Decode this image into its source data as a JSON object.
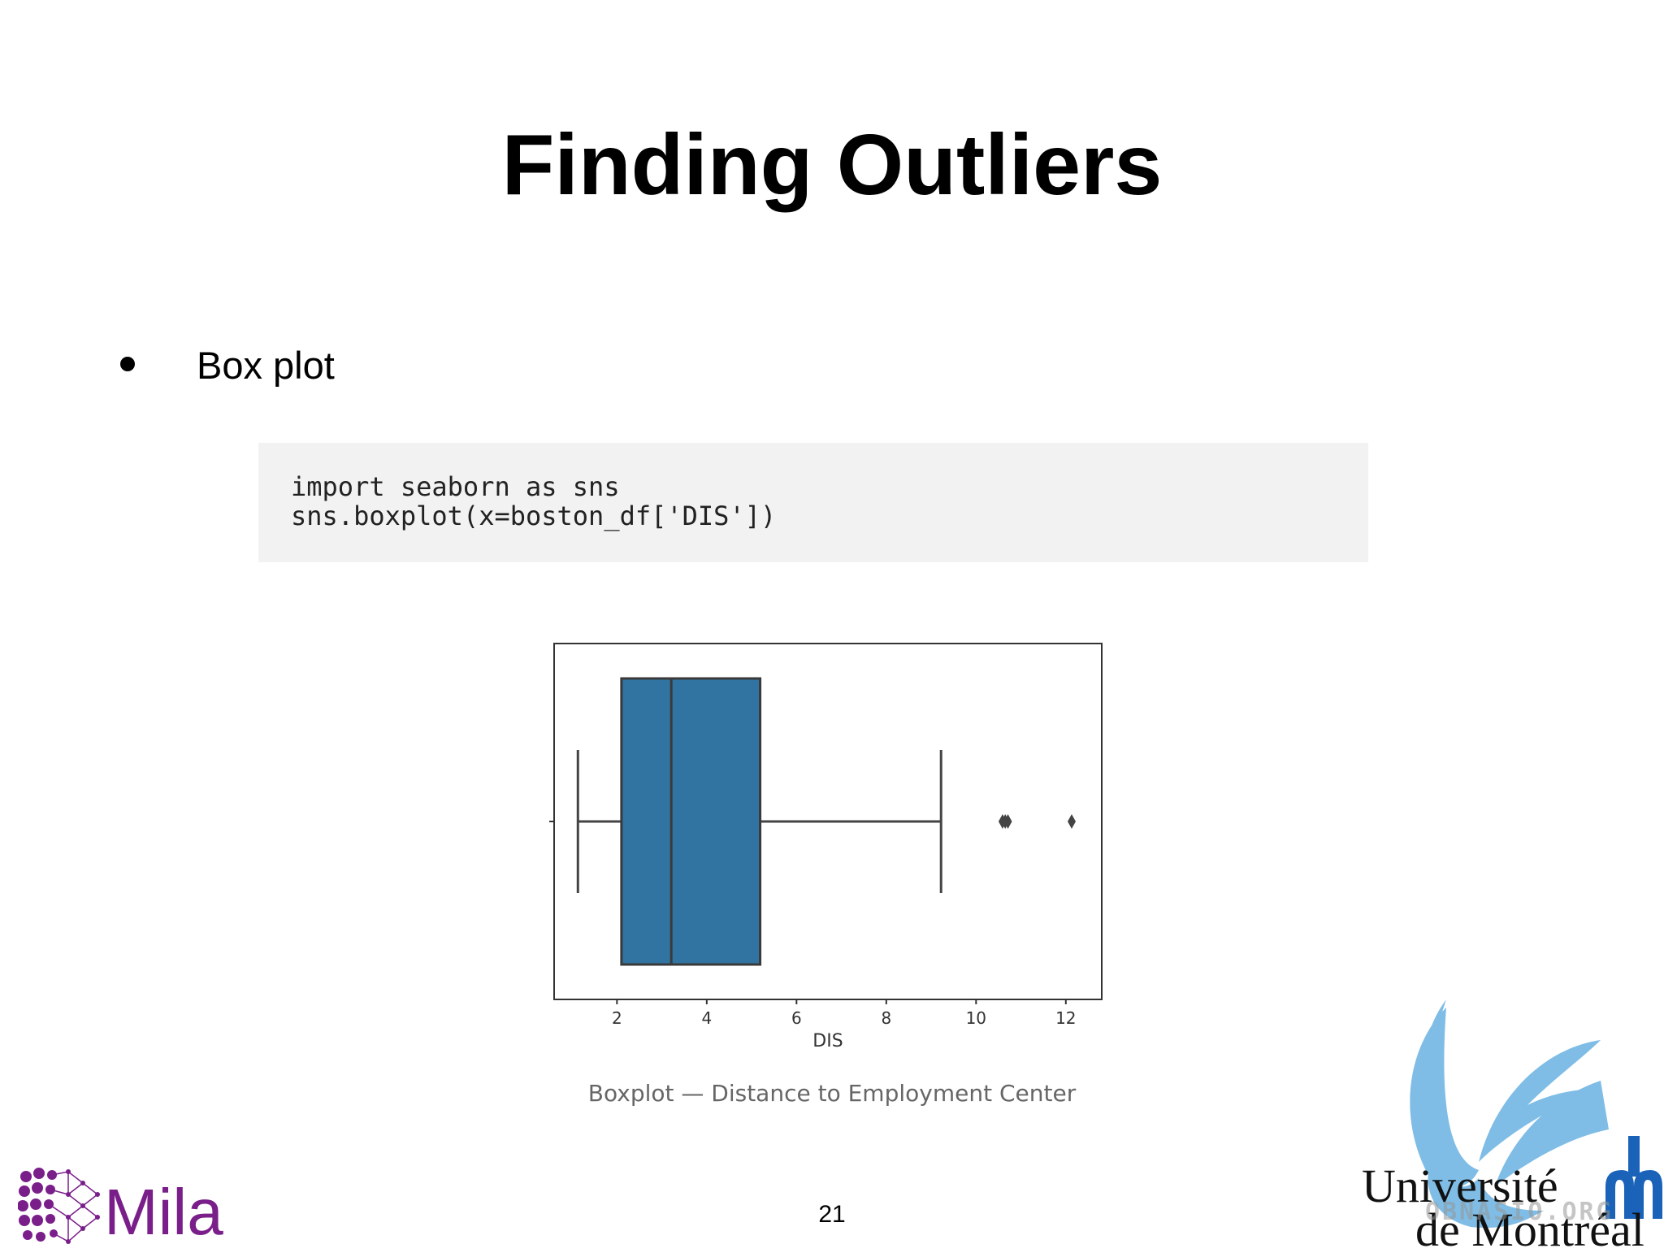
{
  "slide": {
    "title": "Finding Outliers",
    "bullet": "Box plot",
    "code_line_1": "import seaborn as sns",
    "code_line_2": "sns.boxplot(x=boston_df['DIS'])",
    "caption": "Boxplot — Distance to Employment Center",
    "page_number": "21"
  },
  "logos": {
    "mila": "Mila",
    "udem_line1": "Université",
    "udem_line2": "de Montréal",
    "watermark": "OBNASIO.ORG"
  },
  "colors": {
    "box_fill": "#3274a1",
    "mila_purple": "#7a1e8a",
    "udem_blue": "#1a63b8",
    "udem_light": "#7fbde6"
  },
  "chart_data": {
    "type": "box",
    "xlabel": "DIS",
    "ylabel": "",
    "xlim": [
      0.6,
      12.8
    ],
    "ticks": [
      2,
      4,
      6,
      8,
      10,
      12
    ],
    "tick_labels": [
      "2",
      "4",
      "6",
      "8",
      "10",
      "12"
    ],
    "whisker_low": 1.13,
    "q1": 2.1,
    "median": 3.21,
    "q3": 5.19,
    "whisker_high": 9.22,
    "outliers": [
      10.59,
      10.65,
      10.71,
      12.13
    ],
    "grid": false
  }
}
